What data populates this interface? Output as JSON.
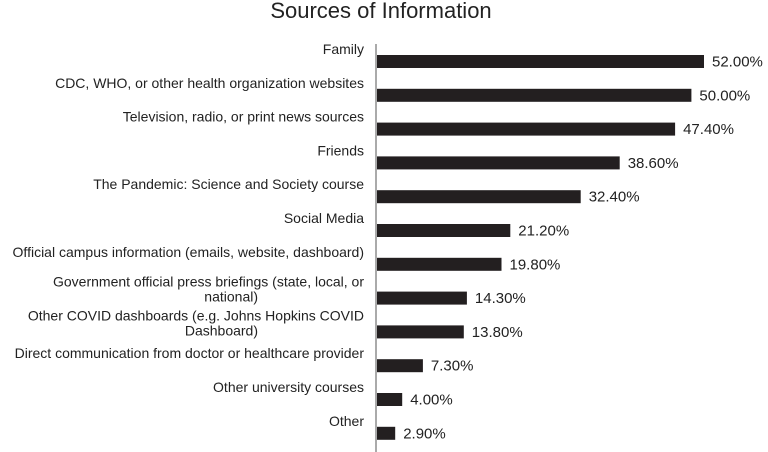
{
  "chart_data": {
    "type": "bar",
    "orientation": "horizontal",
    "title": "Sources of Information",
    "xlabel": "",
    "ylabel": "",
    "xlim": [
      0,
      52
    ],
    "grid": false,
    "legend": "none",
    "bar_color": "#231f20",
    "categories": [
      [
        "Family"
      ],
      [
        "CDC, WHO, or other health organization websites"
      ],
      [
        "Television, radio, or print news sources"
      ],
      [
        "Friends"
      ],
      [
        "The Pandemic: Science and Society course"
      ],
      [
        "Social Media"
      ],
      [
        "Official campus information (emails, website, dashboard)"
      ],
      [
        "Government official press briefings (state, local, or",
        "national)"
      ],
      [
        "Other COVID dashboards (e.g. Johns Hopkins COVID",
        "Dashboard)"
      ],
      [
        "Direct communication from doctor or healthcare provider"
      ],
      [
        "Other university courses"
      ],
      [
        "Other"
      ]
    ],
    "values": [
      52.0,
      50.0,
      47.4,
      38.6,
      32.4,
      21.2,
      19.8,
      14.3,
      13.8,
      7.3,
      4.0,
      2.9
    ],
    "value_labels": [
      "52.00%",
      "50.00%",
      "47.40%",
      "38.60%",
      "32.40%",
      "21.20%",
      "19.80%",
      "14.30%",
      "13.80%",
      "7.30%",
      "4.00%",
      "2.90%"
    ]
  }
}
